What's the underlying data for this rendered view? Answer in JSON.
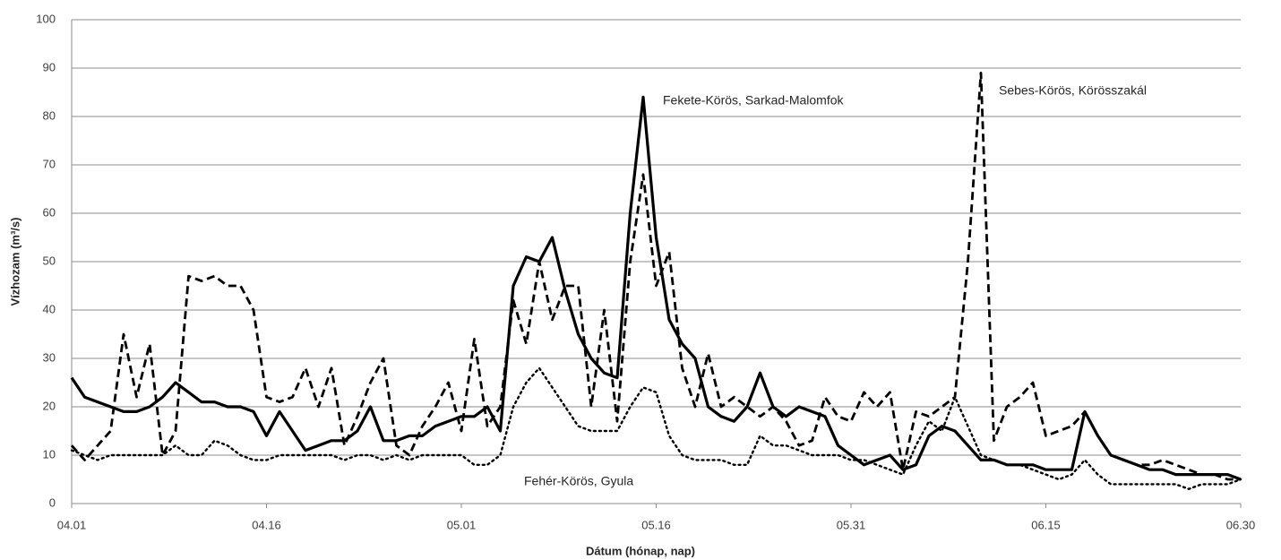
{
  "chart_data": {
    "type": "line",
    "xlabel": "Dátum (hónap, nap)",
    "ylabel": "Vízhozam (m³/s)",
    "x": [
      0,
      1,
      2,
      3,
      4,
      5,
      6,
      7,
      8,
      9,
      10,
      11,
      12,
      13,
      14,
      15,
      16,
      17,
      18,
      19,
      20,
      21,
      22,
      23,
      24,
      25,
      26,
      27,
      28,
      29,
      30,
      31,
      32,
      33,
      34,
      35,
      36,
      37,
      38,
      39,
      40,
      41,
      42,
      43,
      44,
      45,
      46,
      47,
      48,
      49,
      50,
      51,
      52,
      53,
      54,
      55,
      56,
      57,
      58,
      59,
      60,
      61,
      62,
      63,
      64,
      65,
      66,
      67,
      68,
      69,
      70,
      71,
      72,
      73,
      74,
      75,
      76,
      77,
      78,
      79,
      80,
      81,
      82,
      83,
      84,
      85,
      86,
      87,
      88,
      89,
      90
    ],
    "xlim": [
      0,
      90
    ],
    "xticks": [
      {
        "value": 0,
        "label": "04.01"
      },
      {
        "value": 15,
        "label": "04.16"
      },
      {
        "value": 30,
        "label": "05.01"
      },
      {
        "value": 45,
        "label": "05.16"
      },
      {
        "value": 60,
        "label": "05.31"
      },
      {
        "value": 75,
        "label": "06.15"
      },
      {
        "value": 90,
        "label": "06.30"
      }
    ],
    "ylim": [
      0,
      100
    ],
    "yticks": [
      0,
      10,
      20,
      30,
      40,
      50,
      60,
      70,
      80,
      90,
      100
    ],
    "grid": true,
    "series": [
      {
        "name": "Fekete-Körös, Sarkad-Malomfok",
        "color": "#000000",
        "style": "solid",
        "values": [
          26,
          22,
          21,
          20,
          19,
          19,
          20,
          22,
          25,
          23,
          21,
          21,
          20,
          20,
          19,
          14,
          19,
          15,
          11,
          12,
          13,
          13,
          15,
          20,
          13,
          13,
          14,
          14,
          16,
          17,
          18,
          18,
          20,
          15,
          45,
          51,
          50,
          55,
          44,
          35,
          30,
          27,
          26,
          60,
          84,
          55,
          38,
          33,
          30,
          20,
          18,
          17,
          20,
          27,
          20,
          18,
          20,
          19,
          18,
          12,
          10,
          8,
          9,
          10,
          7,
          8,
          14,
          16,
          15,
          12,
          9,
          9,
          8,
          8,
          8,
          7,
          7,
          7,
          19,
          14,
          10,
          9,
          8,
          7,
          7,
          6,
          6,
          6,
          6,
          6,
          5
        ]
      },
      {
        "name": "Sebes-Körös, Körösszakál",
        "color": "#000000",
        "style": "dashed",
        "values": [
          12,
          9,
          12,
          15,
          35,
          22,
          33,
          10,
          15,
          47,
          46,
          47,
          45,
          45,
          40,
          22,
          21,
          22,
          28,
          20,
          28,
          12,
          18,
          25,
          30,
          12,
          10,
          16,
          20,
          25,
          15,
          34,
          16,
          20,
          42,
          33,
          50,
          38,
          45,
          45,
          20,
          40,
          17,
          50,
          68,
          45,
          52,
          28,
          20,
          31,
          20,
          22,
          20,
          18,
          20,
          17,
          12,
          13,
          22,
          18,
          17,
          23,
          20,
          23,
          7,
          19,
          18,
          20,
          22,
          50,
          89,
          13,
          20,
          22,
          25,
          14,
          15,
          16,
          19,
          14,
          10,
          9,
          8,
          8,
          9,
          8,
          7,
          6,
          6,
          5,
          5
        ]
      },
      {
        "name": "Fehér-Körös, Gyula",
        "color": "#000000",
        "style": "dotted",
        "values": [
          11,
          10,
          9,
          10,
          10,
          10,
          10,
          10,
          12,
          10,
          10,
          13,
          12,
          10,
          9,
          9,
          10,
          10,
          10,
          10,
          10,
          9,
          10,
          10,
          9,
          10,
          9,
          10,
          10,
          10,
          10,
          8,
          8,
          10,
          20,
          25,
          28,
          24,
          20,
          16,
          15,
          15,
          15,
          20,
          24,
          23,
          14,
          10,
          9,
          9,
          9,
          8,
          8,
          14,
          12,
          12,
          11,
          10,
          10,
          10,
          9,
          9,
          8,
          7,
          6,
          12,
          17,
          15,
          22,
          16,
          10,
          9,
          8,
          8,
          7,
          6,
          5,
          6,
          9,
          6,
          4,
          4,
          4,
          4,
          4,
          4,
          3,
          4,
          4,
          4,
          5
        ]
      }
    ]
  }
}
